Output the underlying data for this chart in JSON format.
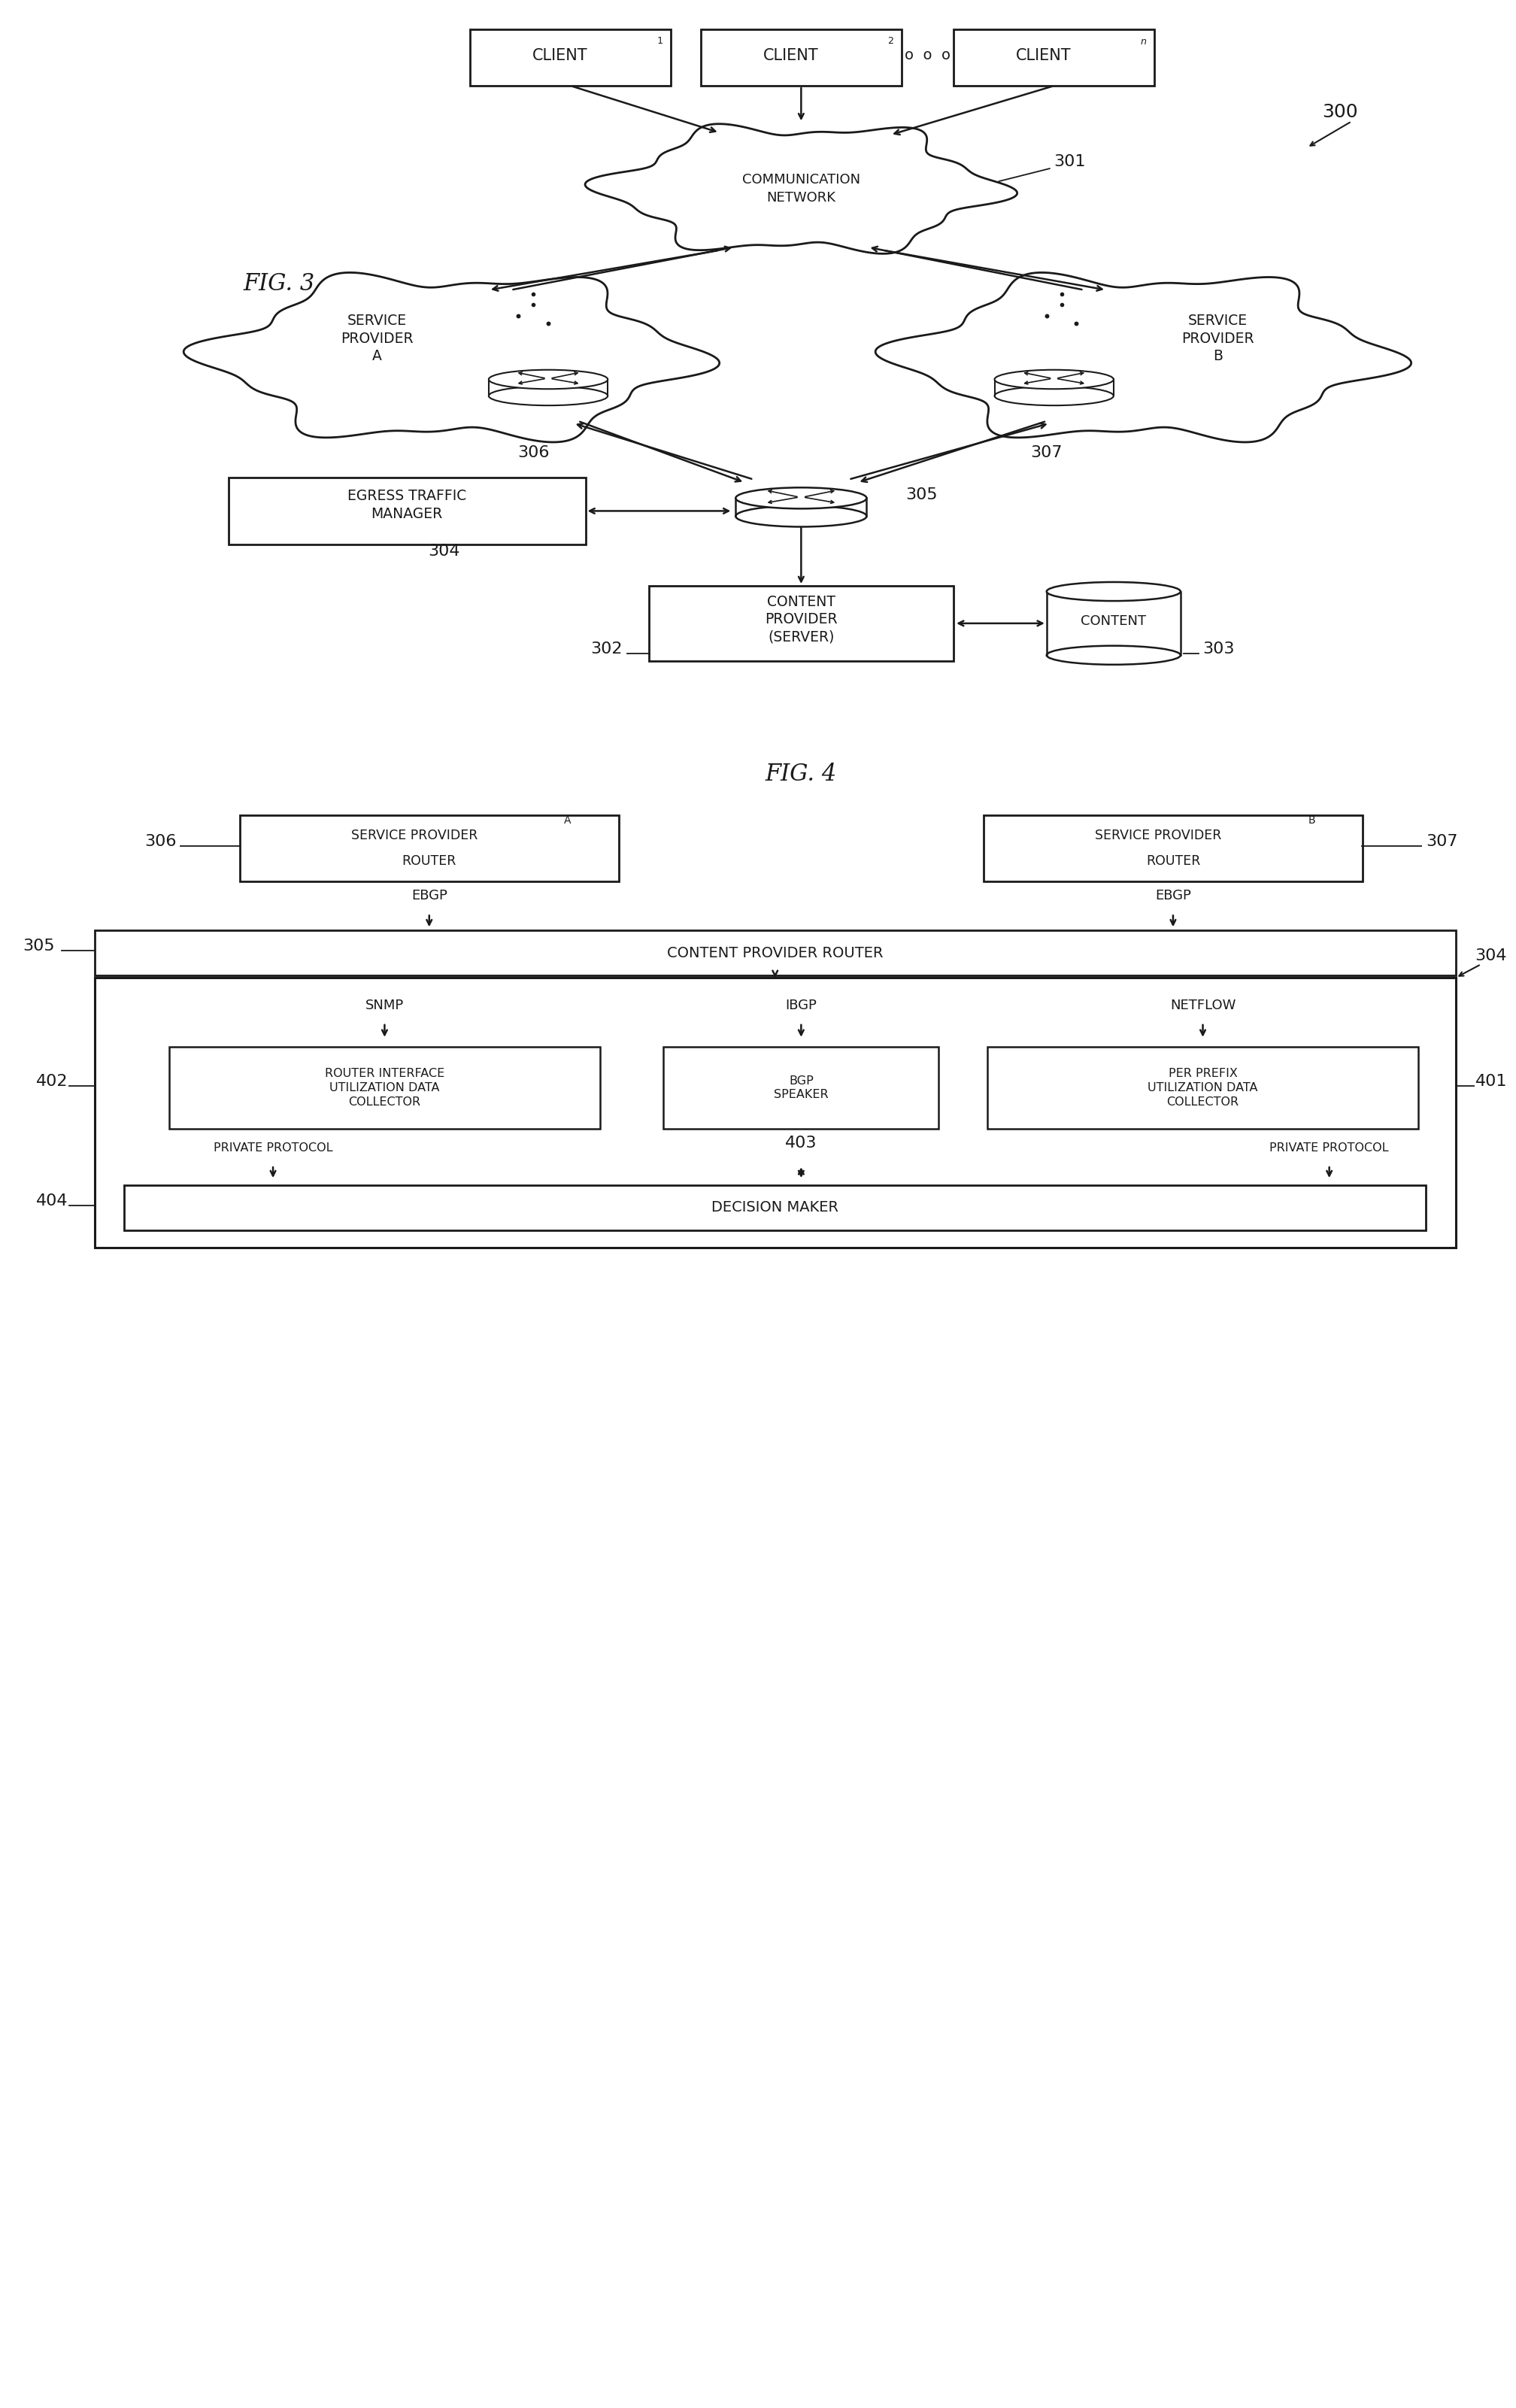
{
  "fig_width": 20.16,
  "fig_height": 32.02,
  "bg_color": "#ffffff",
  "line_color": "#1a1a1a",
  "text_color": "#1a1a1a",
  "fig3": {
    "title": "FIG. 3",
    "label": "300",
    "clients": [
      "CLIENT",
      "CLIENT",
      "CLIENT"
    ],
    "client_subs": [
      "1",
      "2",
      "n"
    ],
    "comm_network_label": "COMMUNICATION\nNETWORK",
    "comm_network_id": "301",
    "sp_a_label": "SERVICE\nPROVIDER\nA",
    "sp_a_id": "306",
    "sp_b_label": "SERVICE\nPROVIDER\nB",
    "sp_b_id": "307",
    "router_label": "305",
    "egress_label": "EGRESS TRAFFIC\nMANAGER",
    "egress_id": "304",
    "content_label": "CONTENT\nPROVIDER\n(SERVER)",
    "content_id": "302",
    "content_store_id": "303"
  },
  "fig4": {
    "title": "FIG. 4",
    "sp_a_label": "SERVICE PROVIDER",
    "sp_a_sub": "A",
    "sp_a_label2": "ROUTER",
    "sp_a_id": "306",
    "sp_b_label": "SERVICE PROVIDER",
    "sp_b_sub": "B",
    "sp_b_label2": "ROUTER",
    "sp_b_id": "307",
    "ebgp": "EBGP",
    "cpr_label": "CONTENT PROVIDER ROUTER",
    "cpr_id": "305",
    "manager_id": "304",
    "snmp": "SNMP",
    "ibgp": "IBGP",
    "netflow": "NETFLOW",
    "riudc_label": "ROUTER INTERFACE\nUTILIZATION DATA\nCOLLECTOR",
    "riudc_id": "402",
    "bgp_label": "BGP\nSPEAKER",
    "bgp_id": "403",
    "ppudc_label": "PER PREFIX\nUTILIZATION DATA\nCOLLECTOR",
    "ppudc_id": "401",
    "priv_proto": "PRIVATE PROTOCOL",
    "dm_label": "DECISION MAKER",
    "dm_id": "404"
  }
}
